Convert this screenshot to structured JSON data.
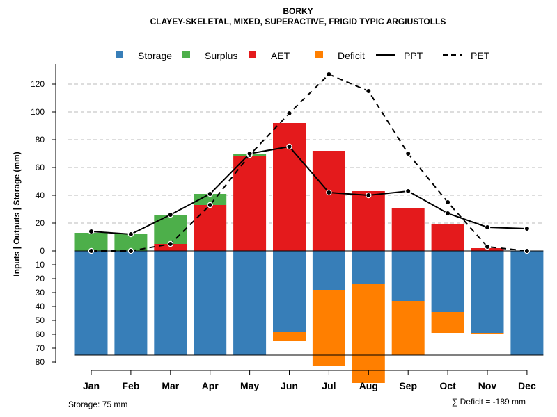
{
  "chart_data": {
    "type": "bar",
    "title": "BORKY",
    "subtitle": "CLAYEY-SKELETAL, MIXED, SUPERACTIVE, FRIGID TYPIC ARGIUSTOLLS",
    "ylabel": "Inputs | Outputs | Storage    (mm)",
    "ylim": [
      -95,
      132
    ],
    "yticks_up": [
      "0",
      "20",
      "40",
      "60",
      "80",
      "100",
      "120"
    ],
    "yticks_down": [
      "10",
      "20",
      "30",
      "40",
      "50",
      "60",
      "70",
      "80"
    ],
    "categories": [
      "Jan",
      "Feb",
      "Mar",
      "Apr",
      "May",
      "Jun",
      "Jul",
      "Aug",
      "Sep",
      "Oct",
      "Nov",
      "Dec"
    ],
    "legend": {
      "storage": "Storage",
      "surplus": "Surplus",
      "aet": "AET",
      "deficit": "Deficit",
      "ppt": "PPT",
      "pet": "PET"
    },
    "series": [
      {
        "name": "AET",
        "values": [
          0,
          0,
          5,
          33,
          68,
          92,
          72,
          43,
          31,
          19,
          2,
          0
        ]
      },
      {
        "name": "Surplus",
        "values": [
          13,
          12,
          21,
          8,
          2,
          0,
          0,
          0,
          0,
          0,
          0,
          0
        ]
      },
      {
        "name": "Storage",
        "values": [
          75,
          75,
          75,
          75,
          75,
          58,
          28,
          24,
          36,
          44,
          59,
          75
        ]
      },
      {
        "name": "Deficit",
        "values": [
          0,
          0,
          0,
          0,
          0,
          7,
          55,
          71,
          39,
          15,
          1,
          0
        ]
      },
      {
        "name": "PPT",
        "values": [
          14,
          12,
          26,
          41,
          70,
          75,
          42,
          40,
          43,
          27,
          17,
          16
        ]
      },
      {
        "name": "PET",
        "values": [
          0,
          0,
          5,
          33,
          69,
          99,
          127,
          115,
          70,
          35,
          3,
          0
        ]
      }
    ],
    "colors": {
      "storage": "#377eb8",
      "surplus": "#4daf4a",
      "aet": "#e41a1c",
      "deficit": "#ff7f00",
      "line": "#000000",
      "grid": "#bbbbbb"
    },
    "annotations": {
      "storage_note": "Storage: 75 mm",
      "deficit_note": "∑ Deficit = -189 mm"
    }
  }
}
